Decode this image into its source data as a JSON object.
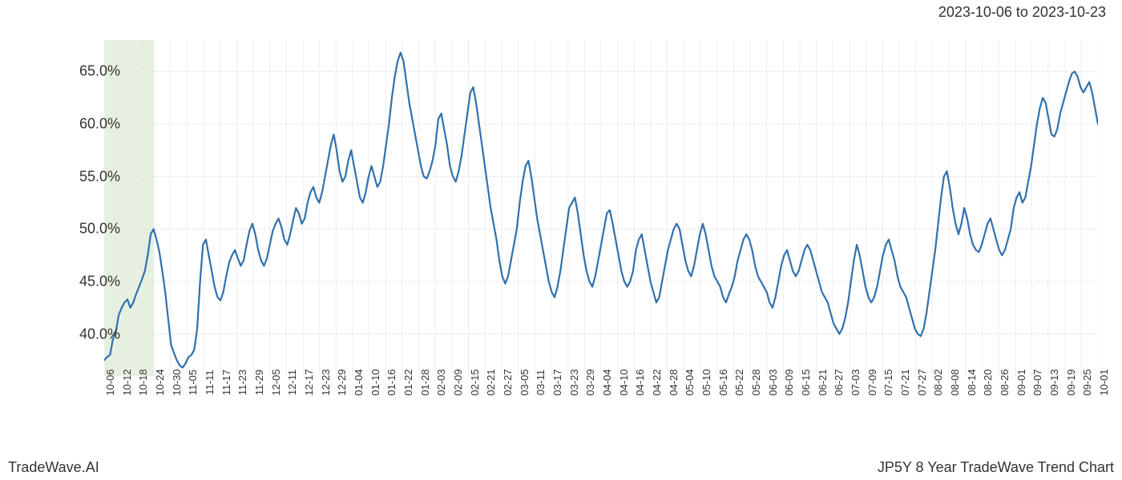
{
  "header": {
    "date_range": "2023-10-06 to 2023-10-23"
  },
  "footer": {
    "brand": "TradeWave.AI",
    "title": "JP5Y 8 Year TradeWave Trend Chart"
  },
  "chart": {
    "type": "line",
    "background_color": "#ffffff",
    "grid_major_color": "#d8d8d8",
    "grid_minor_color": "#eeeeee",
    "line_color": "#3171ad",
    "line_width": 2.2,
    "highlight_band": {
      "x_start": "10-06",
      "x_end": "10-24",
      "fill_color": "#d9e8d0",
      "opacity": 0.65
    },
    "label_fontsize_y": 18,
    "label_fontsize_x": 13,
    "ylim": [
      36,
      68
    ],
    "y_ticks": [
      40.0,
      45.0,
      50.0,
      55.0,
      60.0,
      65.0
    ],
    "y_tick_labels": [
      "40.0%",
      "45.0%",
      "50.0%",
      "55.0%",
      "60.0%",
      "65.0%"
    ],
    "x_labels": [
      "10-06",
      "10-12",
      "10-18",
      "10-24",
      "10-30",
      "11-05",
      "11-11",
      "11-17",
      "11-23",
      "11-29",
      "12-05",
      "12-11",
      "12-17",
      "12-23",
      "12-29",
      "01-04",
      "01-10",
      "01-16",
      "01-22",
      "01-28",
      "02-03",
      "02-09",
      "02-15",
      "02-21",
      "02-27",
      "03-05",
      "03-11",
      "03-17",
      "03-23",
      "03-29",
      "04-04",
      "04-10",
      "04-16",
      "04-22",
      "04-28",
      "05-04",
      "05-10",
      "05-16",
      "05-22",
      "05-28",
      "06-03",
      "06-09",
      "06-15",
      "06-21",
      "06-27",
      "07-03",
      "07-09",
      "07-15",
      "07-21",
      "07-27",
      "08-02",
      "08-08",
      "08-14",
      "08-20",
      "08-26",
      "09-01",
      "09-07",
      "09-13",
      "09-19",
      "09-25",
      "10-01"
    ],
    "series": {
      "values": [
        37.5,
        37.8,
        38.0,
        39.5,
        40.2,
        41.8,
        42.5,
        43.0,
        43.3,
        42.5,
        43.0,
        43.8,
        44.5,
        45.2,
        46.0,
        47.5,
        49.5,
        50.0,
        49.0,
        47.8,
        46.0,
        44.0,
        41.5,
        39.0,
        38.2,
        37.5,
        37.0,
        36.8,
        37.2,
        37.8,
        38.0,
        38.5,
        40.5,
        45.0,
        48.5,
        49.0,
        47.5,
        46.0,
        44.5,
        43.5,
        43.2,
        44.0,
        45.5,
        46.8,
        47.5,
        48.0,
        47.2,
        46.5,
        47.0,
        48.5,
        49.8,
        50.5,
        49.5,
        48.0,
        47.0,
        46.5,
        47.2,
        48.5,
        49.8,
        50.5,
        51.0,
        50.2,
        49.0,
        48.5,
        49.5,
        50.8,
        52.0,
        51.5,
        50.5,
        51.0,
        52.5,
        53.5,
        54.0,
        53.0,
        52.5,
        53.5,
        55.0,
        56.5,
        58.0,
        59.0,
        57.5,
        55.5,
        54.5,
        55.0,
        56.5,
        57.5,
        56.0,
        54.5,
        53.0,
        52.5,
        53.5,
        55.0,
        56.0,
        55.0,
        54.0,
        54.5,
        56.0,
        58.0,
        60.0,
        62.5,
        64.5,
        66.0,
        66.8,
        66.0,
        64.0,
        62.0,
        60.5,
        59.0,
        57.5,
        56.0,
        55.0,
        54.8,
        55.5,
        56.5,
        58.0,
        60.5,
        61.0,
        59.5,
        58.0,
        56.0,
        55.0,
        54.5,
        55.5,
        57.0,
        59.0,
        61.0,
        63.0,
        63.5,
        62.0,
        60.0,
        58.0,
        56.0,
        54.0,
        52.0,
        50.5,
        49.0,
        47.0,
        45.5,
        44.8,
        45.5,
        47.0,
        48.5,
        50.0,
        52.5,
        54.5,
        56.0,
        56.5,
        55.0,
        53.0,
        51.0,
        49.5,
        48.0,
        46.5,
        45.0,
        44.0,
        43.5,
        44.5,
        46.0,
        48.0,
        50.0,
        52.0,
        52.5,
        53.0,
        51.5,
        49.5,
        47.5,
        46.0,
        45.0,
        44.5,
        45.5,
        47.0,
        48.5,
        50.0,
        51.5,
        51.8,
        50.5,
        49.0,
        47.5,
        46.0,
        45.0,
        44.5,
        45.0,
        46.0,
        48.0,
        49.0,
        49.5,
        48.0,
        46.5,
        45.0,
        44.0,
        43.0,
        43.5,
        45.0,
        46.5,
        48.0,
        49.0,
        50.0,
        50.5,
        50.0,
        48.5,
        47.0,
        46.0,
        45.5,
        46.5,
        48.0,
        49.5,
        50.5,
        49.5,
        48.0,
        46.5,
        45.5,
        45.0,
        44.5,
        43.5,
        43.0,
        43.8,
        44.5,
        45.5,
        47.0,
        48.0,
        49.0,
        49.5,
        49.0,
        48.0,
        46.5,
        45.5,
        45.0,
        44.5,
        44.0,
        43.0,
        42.5,
        43.5,
        45.0,
        46.5,
        47.5,
        48.0,
        47.0,
        46.0,
        45.5,
        46.0,
        47.0,
        48.0,
        48.5,
        48.0,
        47.0,
        46.0,
        45.0,
        44.0,
        43.5,
        43.0,
        42.0,
        41.0,
        40.5,
        40.0,
        40.5,
        41.5,
        43.0,
        45.0,
        47.0,
        48.5,
        47.5,
        46.0,
        44.5,
        43.5,
        43.0,
        43.5,
        44.5,
        46.0,
        47.5,
        48.5,
        49.0,
        48.0,
        47.0,
        45.5,
        44.5,
        44.0,
        43.5,
        42.5,
        41.5,
        40.5,
        40.0,
        39.8,
        40.5,
        42.0,
        44.0,
        46.0,
        48.0,
        50.5,
        53.0,
        55.0,
        55.5,
        54.0,
        52.0,
        50.5,
        49.5,
        50.5,
        52.0,
        51.0,
        49.5,
        48.5,
        48.0,
        47.8,
        48.5,
        49.5,
        50.5,
        51.0,
        50.0,
        49.0,
        48.0,
        47.5,
        48.0,
        49.0,
        50.0,
        52.0,
        53.0,
        53.5,
        52.5,
        53.0,
        54.5,
        56.0,
        58.0,
        60.0,
        61.5,
        62.5,
        62.0,
        60.5,
        59.0,
        58.8,
        59.5,
        61.0,
        62.0,
        63.0,
        64.0,
        64.8,
        65.0,
        64.5,
        63.5,
        63.0,
        63.5,
        64.0,
        63.0,
        61.5,
        60.0
      ]
    }
  }
}
